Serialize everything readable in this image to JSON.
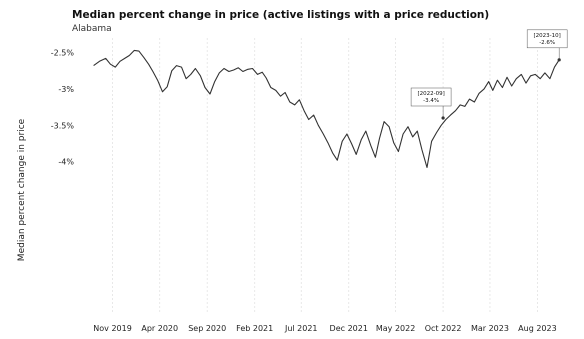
{
  "chart_data": {
    "type": "line",
    "title": "Median percent change in price (active listings with a price reduction)",
    "subtitle": "Alabama",
    "ylabel": "Median percent change in price",
    "xlabel": "",
    "x_range": [
      "2019-08",
      "2023-11"
    ],
    "ylim": [
      -6.15,
      -2.3
    ],
    "y_ticks": [
      {
        "value": -2.5,
        "label": "-2.5%"
      },
      {
        "value": -3.0,
        "label": "-3%"
      },
      {
        "value": -3.5,
        "label": "-3.5%"
      },
      {
        "value": -4.0,
        "label": "-4%"
      }
    ],
    "x_ticks": [
      "Nov 2019",
      "Apr 2020",
      "Sep 2020",
      "Feb 2021",
      "Jul 2021",
      "Dec 2021",
      "May 2022",
      "Oct 2022",
      "Mar 2023",
      "Aug 2023"
    ],
    "grid": "vertical dashed",
    "series": [
      {
        "color": "#333333",
        "points": [
          [
            "2019-09-01",
            -2.68
          ],
          [
            "2019-09-20",
            -2.62
          ],
          [
            "2019-10-10",
            -2.58
          ],
          [
            "2019-10-25",
            -2.66
          ],
          [
            "2019-11-10",
            -2.7
          ],
          [
            "2019-11-25",
            -2.62
          ],
          [
            "2019-12-10",
            -2.58
          ],
          [
            "2019-12-25",
            -2.54
          ],
          [
            "2020-01-10",
            -2.47
          ],
          [
            "2020-01-25",
            -2.48
          ],
          [
            "2020-02-10",
            -2.57
          ],
          [
            "2020-02-25",
            -2.66
          ],
          [
            "2020-03-10",
            -2.76
          ],
          [
            "2020-03-25",
            -2.88
          ],
          [
            "2020-04-10",
            -3.04
          ],
          [
            "2020-04-25",
            -2.97
          ],
          [
            "2020-05-10",
            -2.75
          ],
          [
            "2020-05-25",
            -2.68
          ],
          [
            "2020-06-10",
            -2.7
          ],
          [
            "2020-06-25",
            -2.86
          ],
          [
            "2020-07-10",
            -2.8
          ],
          [
            "2020-07-25",
            -2.72
          ],
          [
            "2020-08-10",
            -2.82
          ],
          [
            "2020-08-25",
            -2.98
          ],
          [
            "2020-09-10",
            -3.07
          ],
          [
            "2020-09-25",
            -2.9
          ],
          [
            "2020-10-10",
            -2.78
          ],
          [
            "2020-10-25",
            -2.72
          ],
          [
            "2020-11-10",
            -2.76
          ],
          [
            "2020-11-25",
            -2.74
          ],
          [
            "2020-12-10",
            -2.71
          ],
          [
            "2020-12-25",
            -2.76
          ],
          [
            "2021-01-10",
            -2.73
          ],
          [
            "2021-01-25",
            -2.72
          ],
          [
            "2021-02-10",
            -2.8
          ],
          [
            "2021-02-25",
            -2.77
          ],
          [
            "2021-03-10",
            -2.85
          ],
          [
            "2021-03-25",
            -2.98
          ],
          [
            "2021-04-10",
            -3.02
          ],
          [
            "2021-04-25",
            -3.1
          ],
          [
            "2021-05-10",
            -3.05
          ],
          [
            "2021-05-25",
            -3.18
          ],
          [
            "2021-06-10",
            -3.22
          ],
          [
            "2021-06-25",
            -3.15
          ],
          [
            "2021-07-10",
            -3.3
          ],
          [
            "2021-07-25",
            -3.42
          ],
          [
            "2021-08-10",
            -3.36
          ],
          [
            "2021-08-25",
            -3.5
          ],
          [
            "2021-09-10",
            -3.62
          ],
          [
            "2021-09-25",
            -3.74
          ],
          [
            "2021-10-10",
            -3.88
          ],
          [
            "2021-10-25",
            -3.98
          ],
          [
            "2021-11-10",
            -3.72
          ],
          [
            "2021-11-25",
            -3.62
          ],
          [
            "2021-12-10",
            -3.75
          ],
          [
            "2021-12-25",
            -3.9
          ],
          [
            "2022-01-10",
            -3.7
          ],
          [
            "2022-01-25",
            -3.58
          ],
          [
            "2022-02-10",
            -3.78
          ],
          [
            "2022-02-25",
            -3.94
          ],
          [
            "2022-03-10",
            -3.68
          ],
          [
            "2022-03-25",
            -3.45
          ],
          [
            "2022-04-10",
            -3.52
          ],
          [
            "2022-04-25",
            -3.74
          ],
          [
            "2022-05-10",
            -3.86
          ],
          [
            "2022-05-25",
            -3.62
          ],
          [
            "2022-06-10",
            -3.52
          ],
          [
            "2022-06-25",
            -3.66
          ],
          [
            "2022-07-10",
            -3.58
          ],
          [
            "2022-07-25",
            -3.84
          ],
          [
            "2022-08-10",
            -4.08
          ],
          [
            "2022-08-25",
            -3.72
          ],
          [
            "2022-09-10",
            -3.6
          ],
          [
            "2022-09-25",
            -3.5
          ],
          [
            "2022-10-10",
            -3.42
          ],
          [
            "2022-10-25",
            -3.36
          ],
          [
            "2022-11-10",
            -3.3
          ],
          [
            "2022-11-25",
            -3.22
          ],
          [
            "2022-12-10",
            -3.24
          ],
          [
            "2022-12-25",
            -3.14
          ],
          [
            "2023-01-10",
            -3.18
          ],
          [
            "2023-01-25",
            -3.06
          ],
          [
            "2023-02-10",
            -3.0
          ],
          [
            "2023-02-25",
            -2.9
          ],
          [
            "2023-03-10",
            -3.02
          ],
          [
            "2023-03-25",
            -2.88
          ],
          [
            "2023-04-10",
            -2.98
          ],
          [
            "2023-04-25",
            -2.84
          ],
          [
            "2023-05-10",
            -2.96
          ],
          [
            "2023-05-25",
            -2.86
          ],
          [
            "2023-06-10",
            -2.8
          ],
          [
            "2023-06-25",
            -2.92
          ],
          [
            "2023-07-10",
            -2.82
          ],
          [
            "2023-07-25",
            -2.8
          ],
          [
            "2023-08-10",
            -2.86
          ],
          [
            "2023-08-25",
            -2.78
          ],
          [
            "2023-09-10",
            -2.86
          ],
          [
            "2023-09-25",
            -2.7
          ],
          [
            "2023-10-10",
            -2.6
          ]
        ]
      }
    ],
    "annotations": [
      {
        "x": "2022-10-01",
        "y": -3.4,
        "lines": [
          "[2022-09]",
          "-3.4%"
        ]
      },
      {
        "x": "2023-10-10",
        "y": -2.6,
        "lines": [
          "[2023-10]",
          "-2.6%"
        ]
      }
    ]
  }
}
